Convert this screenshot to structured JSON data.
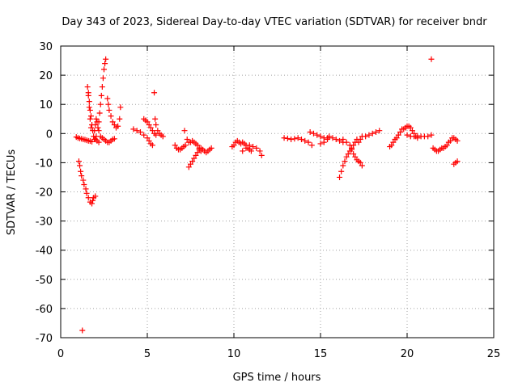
{
  "chart_data": {
    "type": "scatter",
    "title": "Day 343 of 2023, Sidereal Day-to-day VTEC variation (SDTVAR) for receiver bndr",
    "xlabel": "GPS time / hours",
    "ylabel": "SDTVAR / TECUs",
    "xlim": [
      0,
      25
    ],
    "ylim": [
      -70,
      30
    ],
    "xticks": [
      "0",
      "5",
      "10",
      "15",
      "20",
      "25"
    ],
    "yticks": [
      "30",
      "20",
      "10",
      "0",
      "-10",
      "-20",
      "-30",
      "-40",
      "-50",
      "-60",
      "-70"
    ],
    "grid": true,
    "marker": "+",
    "marker_color": "#ff0000",
    "series": [
      {
        "name": "SDTVAR",
        "points": [
          [
            0.9,
            -1.2
          ],
          [
            1.0,
            -1.5
          ],
          [
            1.1,
            -1.7
          ],
          [
            1.2,
            -1.8
          ],
          [
            1.3,
            -2.0
          ],
          [
            1.4,
            -2.1
          ],
          [
            1.5,
            -2.3
          ],
          [
            1.6,
            -2.5
          ],
          [
            1.7,
            -2.6
          ],
          [
            1.8,
            -2.8
          ],
          [
            1.05,
            -9.5
          ],
          [
            1.1,
            -11
          ],
          [
            1.15,
            -13
          ],
          [
            1.2,
            -14.5
          ],
          [
            1.3,
            -16
          ],
          [
            1.35,
            -17.5
          ],
          [
            1.45,
            -19
          ],
          [
            1.5,
            -20.5
          ],
          [
            1.6,
            -22
          ],
          [
            1.7,
            -23.5
          ],
          [
            1.8,
            -24
          ],
          [
            1.85,
            -23
          ],
          [
            1.9,
            -22
          ],
          [
            2.0,
            -21.5
          ],
          [
            1.25,
            -67.5
          ],
          [
            1.55,
            16
          ],
          [
            1.6,
            14
          ],
          [
            1.65,
            11
          ],
          [
            1.7,
            8
          ],
          [
            1.75,
            6
          ],
          [
            1.8,
            3
          ],
          [
            1.85,
            1
          ],
          [
            1.9,
            -1
          ],
          [
            1.95,
            -2
          ],
          [
            1.6,
            13
          ],
          [
            1.65,
            9
          ],
          [
            1.7,
            5
          ],
          [
            1.75,
            2
          ],
          [
            1.95,
            1
          ],
          [
            2.0,
            3
          ],
          [
            2.05,
            5
          ],
          [
            2.1,
            4
          ],
          [
            2.15,
            2
          ],
          [
            2.2,
            1
          ],
          [
            2.0,
            -2
          ],
          [
            2.05,
            -1
          ],
          [
            2.1,
            -2.5
          ],
          [
            2.2,
            -3
          ],
          [
            2.2,
            4
          ],
          [
            2.25,
            7
          ],
          [
            2.3,
            10
          ],
          [
            2.35,
            13
          ],
          [
            2.4,
            16
          ],
          [
            2.45,
            19
          ],
          [
            2.5,
            22
          ],
          [
            2.55,
            24
          ],
          [
            2.6,
            25.5
          ],
          [
            2.3,
            -1
          ],
          [
            2.4,
            -1.5
          ],
          [
            2.5,
            -2
          ],
          [
            2.6,
            -2.5
          ],
          [
            2.7,
            -3
          ],
          [
            2.8,
            -3
          ],
          [
            2.9,
            -2.5
          ],
          [
            3.0,
            -2
          ],
          [
            3.1,
            -1.8
          ],
          [
            2.7,
            12
          ],
          [
            2.75,
            10
          ],
          [
            2.8,
            8
          ],
          [
            2.9,
            6
          ],
          [
            3.0,
            4
          ],
          [
            3.1,
            3
          ],
          [
            3.2,
            2
          ],
          [
            3.3,
            2.5
          ],
          [
            3.4,
            5
          ],
          [
            3.45,
            9
          ],
          [
            4.2,
            1.5
          ],
          [
            4.4,
            1
          ],
          [
            4.6,
            0.5
          ],
          [
            4.8,
            -0.5
          ],
          [
            5.0,
            -1.5
          ],
          [
            5.1,
            -2.5
          ],
          [
            5.2,
            -3.5
          ],
          [
            5.3,
            -4
          ],
          [
            4.8,
            5
          ],
          [
            4.9,
            4.5
          ],
          [
            5.0,
            4
          ],
          [
            5.1,
            3
          ],
          [
            5.2,
            2
          ],
          [
            5.3,
            1
          ],
          [
            5.4,
            0
          ],
          [
            5.5,
            -0.5
          ],
          [
            5.4,
            14
          ],
          [
            5.45,
            5
          ],
          [
            5.5,
            3
          ],
          [
            5.6,
            1
          ],
          [
            5.7,
            0
          ],
          [
            5.8,
            -0.5
          ],
          [
            5.9,
            -1
          ],
          [
            6.6,
            -4
          ],
          [
            6.7,
            -5
          ],
          [
            6.8,
            -5.5
          ],
          [
            6.9,
            -5.5
          ],
          [
            7.0,
            -5
          ],
          [
            7.1,
            -4.5
          ],
          [
            7.2,
            -4
          ],
          [
            7.15,
            1
          ],
          [
            7.3,
            -2
          ],
          [
            7.4,
            -3
          ],
          [
            7.5,
            -3
          ],
          [
            7.6,
            -2.5
          ],
          [
            7.7,
            -3
          ],
          [
            7.8,
            -3.5
          ],
          [
            7.9,
            -4
          ],
          [
            8.0,
            -5
          ],
          [
            8.1,
            -6
          ],
          [
            7.4,
            -11.5
          ],
          [
            7.5,
            -10.5
          ],
          [
            7.6,
            -9.5
          ],
          [
            7.7,
            -8.5
          ],
          [
            7.8,
            -7.5
          ],
          [
            7.9,
            -6.5
          ],
          [
            8.0,
            -5.5
          ],
          [
            8.1,
            -5
          ],
          [
            8.2,
            -5.5
          ],
          [
            8.3,
            -6
          ],
          [
            8.4,
            -6.5
          ],
          [
            8.5,
            -6
          ],
          [
            8.6,
            -5.5
          ],
          [
            8.7,
            -5
          ],
          [
            9.9,
            -4.5
          ],
          [
            10.0,
            -4
          ],
          [
            10.1,
            -3
          ],
          [
            10.2,
            -2.5
          ],
          [
            10.3,
            -3
          ],
          [
            10.4,
            -3.5
          ],
          [
            10.5,
            -3
          ],
          [
            10.6,
            -3.5
          ],
          [
            10.7,
            -4
          ],
          [
            10.8,
            -5
          ],
          [
            10.9,
            -5.5
          ],
          [
            11.0,
            -6
          ],
          [
            10.5,
            -6
          ],
          [
            10.7,
            -5
          ],
          [
            10.9,
            -4
          ],
          [
            11.1,
            -4.5
          ],
          [
            11.3,
            -5
          ],
          [
            11.5,
            -6
          ],
          [
            11.6,
            -7.5
          ],
          [
            12.9,
            -1.5
          ],
          [
            13.1,
            -1.7
          ],
          [
            13.3,
            -2
          ],
          [
            13.5,
            -1.8
          ],
          [
            13.7,
            -1.5
          ],
          [
            13.9,
            -2
          ],
          [
            14.1,
            -2.5
          ],
          [
            14.3,
            -3
          ],
          [
            14.5,
            -4
          ],
          [
            14.4,
            0.5
          ],
          [
            14.6,
            0
          ],
          [
            14.8,
            -0.5
          ],
          [
            15.0,
            -1
          ],
          [
            15.2,
            -1.5
          ],
          [
            15.4,
            -1.5
          ],
          [
            15.0,
            -3.5
          ],
          [
            15.2,
            -3
          ],
          [
            15.4,
            -2
          ],
          [
            15.5,
            -1
          ],
          [
            15.7,
            -1.5
          ],
          [
            15.9,
            -2
          ],
          [
            16.1,
            -2.5
          ],
          [
            16.3,
            -3
          ],
          [
            16.1,
            -15
          ],
          [
            16.2,
            -13
          ],
          [
            16.3,
            -11
          ],
          [
            16.4,
            -9.5
          ],
          [
            16.5,
            -8
          ],
          [
            16.6,
            -7
          ],
          [
            16.7,
            -6
          ],
          [
            16.8,
            -5
          ],
          [
            16.9,
            -4
          ],
          [
            17.0,
            -3
          ],
          [
            17.1,
            -2
          ],
          [
            16.3,
            -2
          ],
          [
            16.5,
            -3
          ],
          [
            16.7,
            -4
          ],
          [
            16.8,
            -5.5
          ],
          [
            16.9,
            -7
          ],
          [
            17.0,
            -8
          ],
          [
            17.1,
            -9
          ],
          [
            17.2,
            -9.5
          ],
          [
            17.3,
            -10
          ],
          [
            17.4,
            -11
          ],
          [
            17.2,
            -3
          ],
          [
            17.3,
            -2
          ],
          [
            17.4,
            -1
          ],
          [
            17.6,
            -1
          ],
          [
            17.8,
            -0.5
          ],
          [
            18.0,
            0
          ],
          [
            18.2,
            0.5
          ],
          [
            18.4,
            1
          ],
          [
            19.0,
            -4.5
          ],
          [
            19.1,
            -4
          ],
          [
            19.2,
            -3
          ],
          [
            19.3,
            -2
          ],
          [
            19.4,
            -1.5
          ],
          [
            19.5,
            -0.5
          ],
          [
            19.6,
            0.5
          ],
          [
            19.7,
            1.5
          ],
          [
            19.8,
            1.5
          ],
          [
            19.9,
            2
          ],
          [
            20.0,
            2.5
          ],
          [
            20.1,
            2.5
          ],
          [
            20.2,
            2
          ],
          [
            20.3,
            1
          ],
          [
            20.4,
            0
          ],
          [
            20.5,
            -1
          ],
          [
            20.6,
            -1.5
          ],
          [
            20.8,
            -1
          ],
          [
            21.0,
            -1
          ],
          [
            21.2,
            -1
          ],
          [
            21.4,
            -0.5
          ],
          [
            20.0,
            -0.5
          ],
          [
            20.2,
            -1
          ],
          [
            20.4,
            -1
          ],
          [
            20.6,
            -0.8
          ],
          [
            21.4,
            25.5
          ],
          [
            21.5,
            -5
          ],
          [
            21.6,
            -5.5
          ],
          [
            21.7,
            -6
          ],
          [
            21.8,
            -6
          ],
          [
            21.9,
            -5.5
          ],
          [
            22.0,
            -5
          ],
          [
            22.1,
            -5
          ],
          [
            22.2,
            -4.5
          ],
          [
            22.3,
            -4
          ],
          [
            22.4,
            -3
          ],
          [
            22.5,
            -2.5
          ],
          [
            22.6,
            -1.5
          ],
          [
            22.7,
            -1.5
          ],
          [
            22.8,
            -2
          ],
          [
            22.9,
            -2.5
          ],
          [
            22.7,
            -10.5
          ],
          [
            22.8,
            -10
          ],
          [
            22.9,
            -9.5
          ]
        ]
      }
    ]
  }
}
